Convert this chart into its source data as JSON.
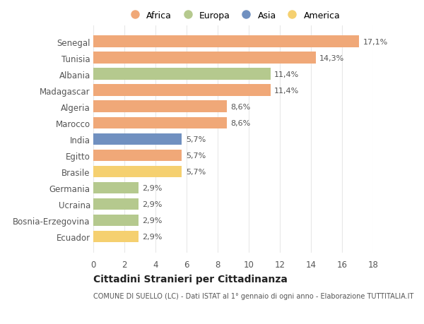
{
  "countries": [
    "Senegal",
    "Tunisia",
    "Albania",
    "Madagascar",
    "Algeria",
    "Marocco",
    "India",
    "Egitto",
    "Brasile",
    "Germania",
    "Ucraina",
    "Bosnia-Erzegovina",
    "Ecuador"
  ],
  "values": [
    17.1,
    14.3,
    11.4,
    11.4,
    8.6,
    8.6,
    5.7,
    5.7,
    5.7,
    2.9,
    2.9,
    2.9,
    2.9
  ],
  "labels": [
    "17,1%",
    "14,3%",
    "11,4%",
    "11,4%",
    "8,6%",
    "8,6%",
    "5,7%",
    "5,7%",
    "5,7%",
    "2,9%",
    "2,9%",
    "2,9%",
    "2,9%"
  ],
  "continents": [
    "Africa",
    "Africa",
    "Europa",
    "Africa",
    "Africa",
    "Africa",
    "Asia",
    "Africa",
    "America",
    "Europa",
    "Europa",
    "Europa",
    "America"
  ],
  "colors": {
    "Africa": "#F0A878",
    "Europa": "#B5C98E",
    "Asia": "#7090C0",
    "America": "#F5D070"
  },
  "legend_order": [
    "Africa",
    "Europa",
    "Asia",
    "America"
  ],
  "title1": "Cittadini Stranieri per Cittadinanza",
  "title2": "COMUNE DI SUELLO (LC) - Dati ISTAT al 1° gennaio di ogni anno - Elaborazione TUTTITALIA.IT",
  "xlim": [
    0,
    18
  ],
  "xticks": [
    0,
    2,
    4,
    6,
    8,
    10,
    12,
    14,
    16,
    18
  ],
  "bg_color": "#FFFFFF",
  "grid_color": "#E8E8E8"
}
